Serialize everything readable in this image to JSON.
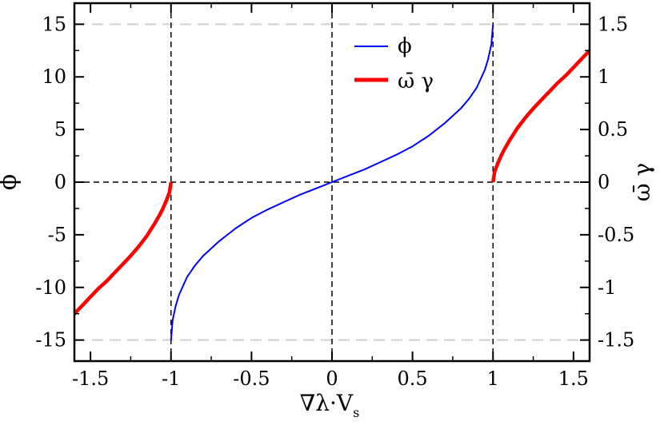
{
  "chart_data": {
    "type": "line",
    "xlabel": "∇λ·V",
    "xlabel_subscript": "s",
    "ylabel_left": "ϕ",
    "ylabel_right": "ω̄ γ",
    "xlim": [
      -1.6,
      1.6
    ],
    "ylim_left": [
      -17,
      17
    ],
    "ylim_right": [
      -1.7,
      1.7
    ],
    "x_ticks": [
      -1.5,
      -1,
      -0.5,
      0,
      0.5,
      1,
      1.5
    ],
    "x_tick_labels": [
      "-1.5",
      "-1",
      "-0.5",
      "0",
      "0.5",
      "1",
      "1.5"
    ],
    "y_left_ticks": [
      -15,
      -10,
      -5,
      0,
      5,
      10,
      15
    ],
    "y_left_tick_labels": [
      "-15",
      "-10",
      "-5",
      "0",
      "5",
      "10",
      "15"
    ],
    "y_right_ticks": [
      -1.5,
      -1,
      -0.5,
      0,
      0.5,
      1,
      1.5
    ],
    "y_right_tick_labels": [
      "-1.5",
      "-1",
      "-0.5",
      "0",
      "0.5",
      "1",
      "1.5"
    ],
    "reference_lines": {
      "vertical_dashed": [
        -1,
        0,
        1
      ],
      "horizontal_dashed": [
        0
      ],
      "horizontal_gray_dashed": [
        -15,
        15
      ]
    },
    "legend": {
      "position": "top-center",
      "entries": [
        {
          "label": "ϕ",
          "color": "#0000ff"
        },
        {
          "label": "ω̄ γ",
          "color": "#ff0000"
        }
      ]
    },
    "series": [
      {
        "name": "ϕ",
        "axis": "left",
        "color": "#0000ff",
        "x": [
          -1.0,
          -0.99,
          -0.97,
          -0.95,
          -0.9,
          -0.85,
          -0.8,
          -0.7,
          -0.6,
          -0.5,
          -0.4,
          -0.3,
          -0.2,
          -0.1,
          0.0,
          0.1,
          0.2,
          0.3,
          0.4,
          0.5,
          0.6,
          0.7,
          0.8,
          0.85,
          0.9,
          0.95,
          0.97,
          0.99,
          1.0
        ],
        "y": [
          -15.0,
          -13.1,
          -11.7,
          -10.7,
          -9.0,
          -7.9,
          -7.0,
          -5.6,
          -4.4,
          -3.4,
          -2.6,
          -1.9,
          -1.2,
          -0.6,
          0.0,
          0.6,
          1.2,
          1.9,
          2.6,
          3.4,
          4.4,
          5.6,
          7.0,
          7.9,
          9.0,
          10.7,
          11.7,
          13.1,
          15.0
        ]
      },
      {
        "name": "ω̄ γ",
        "axis": "right",
        "color": "#ff0000",
        "segments": [
          {
            "x": [
              -1.6,
              -1.55,
              -1.5,
              -1.45,
              -1.4,
              -1.35,
              -1.3,
              -1.25,
              -1.2,
              -1.15,
              -1.1,
              -1.07,
              -1.05,
              -1.03,
              -1.02,
              -1.01,
              -1.0
            ],
            "y": [
              -1.25,
              -1.17,
              -1.09,
              -1.01,
              -0.94,
              -0.86,
              -0.78,
              -0.7,
              -0.61,
              -0.51,
              -0.39,
              -0.31,
              -0.25,
              -0.18,
              -0.14,
              -0.1,
              0.0
            ]
          },
          {
            "x": [
              1.0,
              1.01,
              1.02,
              1.03,
              1.05,
              1.07,
              1.1,
              1.15,
              1.2,
              1.25,
              1.3,
              1.35,
              1.4,
              1.45,
              1.5,
              1.55,
              1.6
            ],
            "y": [
              0.0,
              0.1,
              0.14,
              0.18,
              0.25,
              0.31,
              0.39,
              0.51,
              0.61,
              0.7,
              0.78,
              0.86,
              0.94,
              1.01,
              1.09,
              1.17,
              1.25
            ]
          }
        ]
      }
    ]
  }
}
